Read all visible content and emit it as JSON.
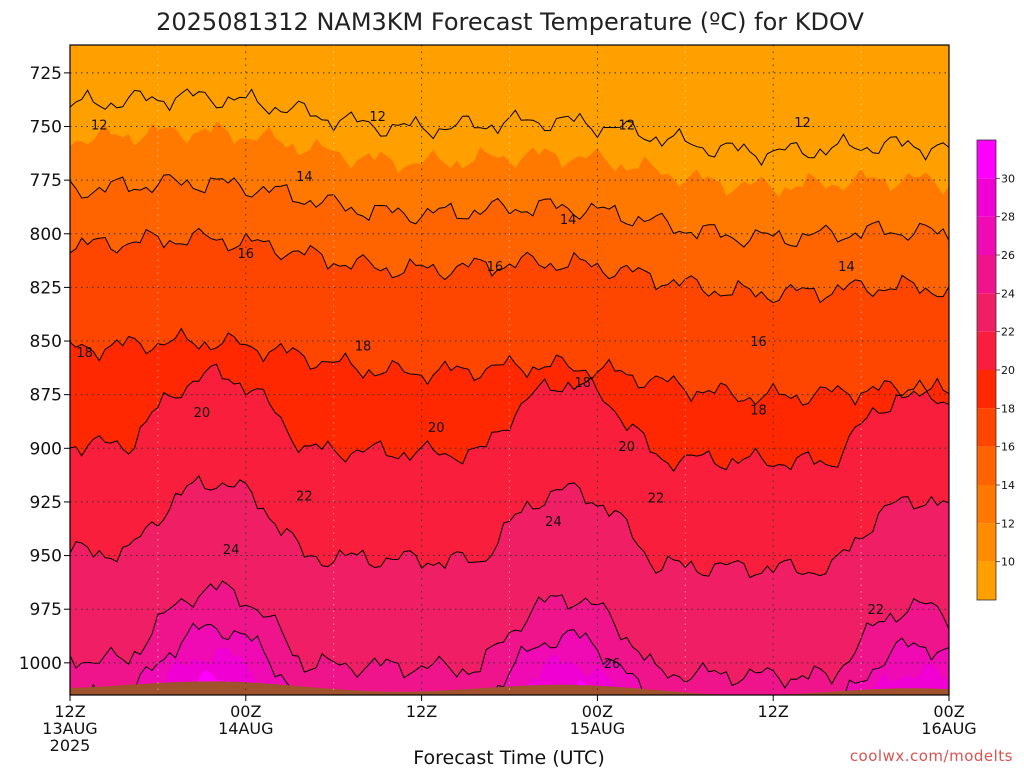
{
  "colors": {
    "terrain": "#a0522d",
    "contour_line": "#000000",
    "credit": "#d9534f"
  },
  "chart_data": {
    "type": "heatmap",
    "title": "2025081312 NAM3KM Forecast Temperature (ºC) for KDOV",
    "xlabel": "Forecast Time (UTC)",
    "ylabel": "",
    "y_axis": {
      "ticks": [
        725,
        750,
        775,
        800,
        825,
        850,
        875,
        900,
        925,
        950,
        975,
        1000
      ],
      "range": [
        1015,
        712
      ],
      "unit": "hPa"
    },
    "x_axis": {
      "ticks": [
        {
          "hour": 0,
          "lines": [
            "12Z",
            "13AUG",
            "2025"
          ]
        },
        {
          "hour": 12,
          "lines": [
            "00Z",
            "14AUG"
          ]
        },
        {
          "hour": 24,
          "lines": [
            "12Z"
          ]
        },
        {
          "hour": 36,
          "lines": [
            "00Z",
            "15AUG"
          ]
        },
        {
          "hour": 48,
          "lines": [
            "12Z"
          ]
        },
        {
          "hour": 60,
          "lines": [
            "00Z",
            "16AUG"
          ]
        }
      ],
      "range": [
        0,
        60
      ]
    },
    "grid": true,
    "surface_pressure_hpa": 1010,
    "contour_levels": [
      12,
      14,
      16,
      18,
      20,
      22,
      24,
      26
    ],
    "contour_labels": [
      {
        "value": "12",
        "hour": 2,
        "p": 749
      },
      {
        "value": "12",
        "hour": 21,
        "p": 745
      },
      {
        "value": "12",
        "hour": 38,
        "p": 749
      },
      {
        "value": "12",
        "hour": 50,
        "p": 748
      },
      {
        "value": "14",
        "hour": 16,
        "p": 773
      },
      {
        "value": "14",
        "hour": 34,
        "p": 793
      },
      {
        "value": "14",
        "hour": 53,
        "p": 815
      },
      {
        "value": "16",
        "hour": 12,
        "p": 809
      },
      {
        "value": "16",
        "hour": 29,
        "p": 815
      },
      {
        "value": "16",
        "hour": 47,
        "p": 850
      },
      {
        "value": "18",
        "hour": 1,
        "p": 855
      },
      {
        "value": "18",
        "hour": 20,
        "p": 852
      },
      {
        "value": "18",
        "hour": 35,
        "p": 869
      },
      {
        "value": "18",
        "hour": 47,
        "p": 882
      },
      {
        "value": "20",
        "hour": 9,
        "p": 883
      },
      {
        "value": "20",
        "hour": 25,
        "p": 890
      },
      {
        "value": "20",
        "hour": 38,
        "p": 899
      },
      {
        "value": "22",
        "hour": 16,
        "p": 922
      },
      {
        "value": "22",
        "hour": 40,
        "p": 923
      },
      {
        "value": "22",
        "hour": 55,
        "p": 975
      },
      {
        "value": "24",
        "hour": 11,
        "p": 947
      },
      {
        "value": "24",
        "hour": 33,
        "p": 934
      },
      {
        "value": "26",
        "hour": 37,
        "p": 1000
      }
    ],
    "colorbar": {
      "labels": [
        "10",
        "12",
        "14",
        "16",
        "18",
        "20",
        "22",
        "24",
        "26",
        "28",
        "30"
      ],
      "bands": [
        {
          "min": 8,
          "max": 10,
          "color": "#ffa000"
        },
        {
          "min": 10,
          "max": 12,
          "color": "#ff8c00"
        },
        {
          "min": 12,
          "max": 14,
          "color": "#ff7800"
        },
        {
          "min": 14,
          "max": 16,
          "color": "#ff6400"
        },
        {
          "min": 16,
          "max": 18,
          "color": "#ff4600"
        },
        {
          "min": 18,
          "max": 20,
          "color": "#ff2800"
        },
        {
          "min": 20,
          "max": 22,
          "color": "#f81e3c"
        },
        {
          "min": 22,
          "max": 24,
          "color": "#f01e64"
        },
        {
          "min": 24,
          "max": 26,
          "color": "#f0148c"
        },
        {
          "min": 26,
          "max": 28,
          "color": "#f00ab4"
        },
        {
          "min": 28,
          "max": 30,
          "color": "#f000d2"
        },
        {
          "min": 30,
          "max": 32,
          "color": "#ff00ff"
        }
      ]
    }
  },
  "credit": "coolwx.com/modelts"
}
